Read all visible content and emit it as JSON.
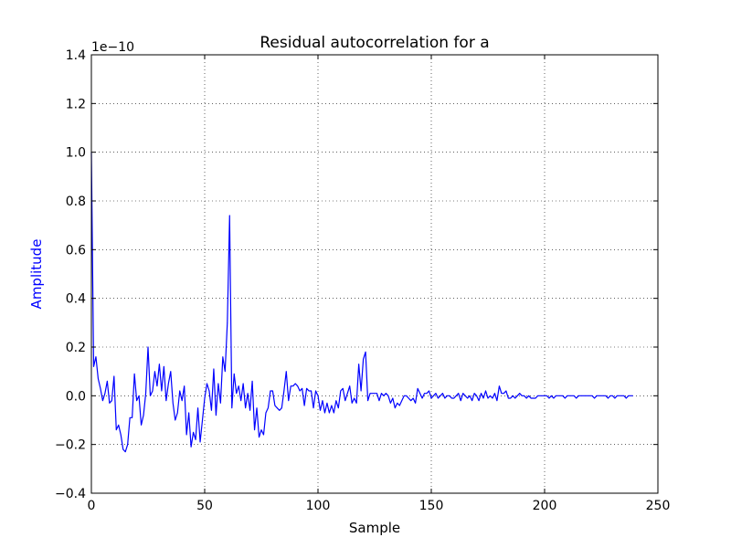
{
  "chart_data": {
    "type": "line",
    "title": "Residual autocorrelation for a",
    "xlabel": "Sample",
    "ylabel": "Amplitude",
    "ylabel_color": "#0000ff",
    "y_multiplier": "1e−10",
    "xlim": [
      0,
      250
    ],
    "ylim": [
      -0.4,
      1.4
    ],
    "xticks": [
      0,
      50,
      100,
      150,
      200,
      250
    ],
    "xtick_labels": [
      "0",
      "50",
      "100",
      "150",
      "200",
      "250"
    ],
    "yticks": [
      -0.4,
      -0.2,
      0.0,
      0.2,
      0.4,
      0.6,
      0.8,
      1.0,
      1.2,
      1.4
    ],
    "ytick_labels": [
      "−0.4",
      "−0.2",
      "0.0",
      "0.2",
      "0.4",
      "0.6",
      "0.8",
      "1.0",
      "1.2",
      "1.4"
    ],
    "grid": true,
    "series": [
      {
        "color": "#0000ff",
        "x_start": 0,
        "x_step": 1,
        "values": [
          1.0,
          0.12,
          0.16,
          0.07,
          0.03,
          -0.02,
          0.01,
          0.06,
          -0.03,
          -0.02,
          0.08,
          -0.14,
          -0.12,
          -0.16,
          -0.22,
          -0.23,
          -0.2,
          -0.09,
          -0.09,
          0.09,
          -0.02,
          0.0,
          -0.12,
          -0.08,
          0.01,
          0.2,
          0.0,
          0.02,
          0.1,
          0.04,
          0.13,
          0.02,
          0.12,
          -0.02,
          0.05,
          0.1,
          -0.03,
          -0.1,
          -0.07,
          0.02,
          -0.02,
          0.04,
          -0.16,
          -0.07,
          -0.21,
          -0.15,
          -0.18,
          -0.05,
          -0.19,
          -0.1,
          -0.01,
          0.05,
          0.02,
          -0.06,
          0.11,
          -0.08,
          0.05,
          -0.03,
          0.16,
          0.1,
          0.3,
          0.74,
          -0.05,
          0.09,
          0.01,
          0.04,
          -0.02,
          0.05,
          -0.05,
          0.01,
          -0.06,
          0.06,
          -0.14,
          -0.05,
          -0.17,
          -0.14,
          -0.16,
          -0.07,
          -0.05,
          0.02,
          0.02,
          -0.04,
          -0.05,
          -0.06,
          -0.05,
          0.02,
          0.1,
          -0.02,
          0.04,
          0.04,
          0.05,
          0.04,
          0.02,
          0.03,
          -0.04,
          0.03,
          0.02,
          0.02,
          -0.05,
          0.02,
          0.0,
          -0.06,
          -0.02,
          -0.07,
          -0.03,
          -0.07,
          -0.04,
          -0.07,
          -0.02,
          -0.05,
          0.02,
          0.03,
          -0.02,
          0.01,
          0.04,
          -0.03,
          -0.01,
          -0.03,
          0.13,
          0.02,
          0.15,
          0.18,
          -0.02,
          0.01,
          0.01,
          0.01,
          0.01,
          -0.02,
          0.01,
          0.0,
          0.01,
          0.0,
          -0.03,
          -0.01,
          -0.05,
          -0.03,
          -0.04,
          -0.02,
          0.0,
          0.0,
          -0.01,
          -0.02,
          -0.01,
          -0.03,
          0.03,
          0.01,
          -0.01,
          0.01,
          0.01,
          0.02,
          -0.01,
          0.0,
          0.01,
          -0.01,
          0.0,
          0.01,
          -0.01,
          0.0,
          0.0,
          -0.01,
          -0.01,
          0.0,
          0.01,
          -0.02,
          0.01,
          0.0,
          -0.01,
          0.0,
          -0.02,
          0.01,
          0.0,
          -0.02,
          0.01,
          -0.01,
          0.02,
          -0.01,
          0.0,
          -0.01,
          0.01,
          -0.02,
          0.04,
          0.01,
          0.01,
          0.02,
          -0.01,
          -0.01,
          0.0,
          -0.01,
          0.0,
          0.01,
          0.0,
          0.0,
          -0.01,
          0.0,
          -0.01,
          -0.01,
          -0.01,
          0.0,
          0.0,
          0.0,
          0.0,
          0.0,
          -0.01,
          0.0,
          -0.01,
          0.0,
          0.0,
          0.0,
          0.0,
          -0.01,
          0.0,
          0.0,
          0.0,
          0.0,
          -0.01,
          0.0,
          0.0,
          0.0,
          0.0,
          0.0,
          0.0,
          0.0,
          -0.01,
          0.0,
          0.0,
          0.0,
          0.0,
          0.0,
          -0.01,
          0.0,
          0.0,
          -0.01,
          0.0,
          0.0,
          0.0,
          0.0,
          -0.01,
          0.0,
          0.0,
          0.0
        ]
      }
    ]
  }
}
